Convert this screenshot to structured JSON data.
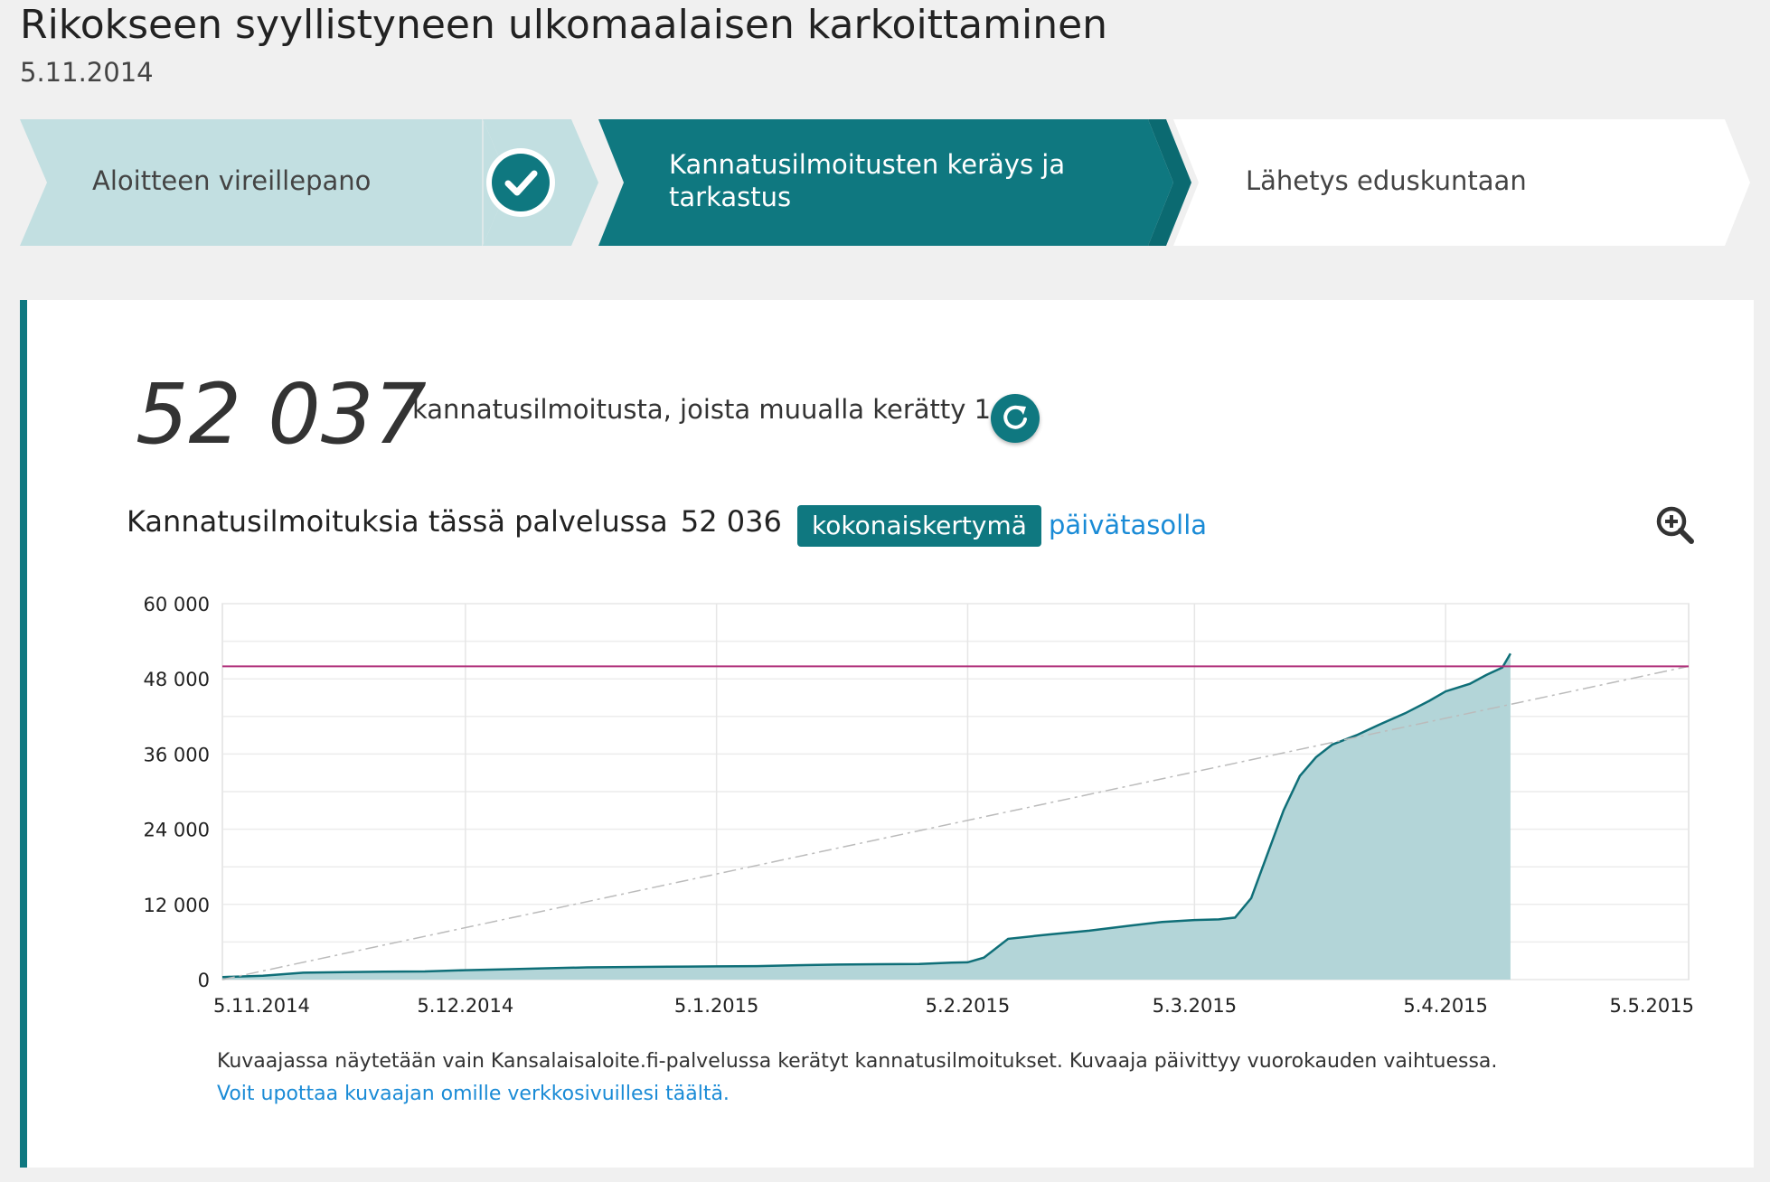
{
  "page": {
    "title": "Rikokseen syyllistyneen ulkomaalaisen karkoittaminen",
    "date": "5.11.2014"
  },
  "steps": [
    {
      "label": "Aloitteen vireillepano",
      "state": "done"
    },
    {
      "label_line1": "Kannatusilmoitusten keräys ja",
      "label_line2": "tarkastus",
      "state": "active"
    },
    {
      "label": "Lähetys eduskuntaan",
      "state": "upcoming"
    }
  ],
  "summary": {
    "count": "52 037",
    "description": "kannatusilmoitusta, joista muualla kerätty 1"
  },
  "chart_section": {
    "heading": "Kannatusilmoituksia tässä palvelussa",
    "service_count": "52 036",
    "tab_active": "kokonaiskertymä",
    "tab_other": "päivätasolla"
  },
  "note": {
    "text": "Kuvaajassa näytetään vain Kansalaisaloite.fi-palvelussa kerätyt kannatusilmoitukset. Kuvaaja päivittyy vuorokauden vaihtuessa.",
    "link": "Voit upottaa kuvaajan omille verkkosivuillesi täältä."
  },
  "colors": {
    "accent": "#0f7880",
    "done_step": "#c2dfe1",
    "area_fill": "#b3d5d8",
    "threshold_line": "#b0307a",
    "link": "#1a8bd6"
  },
  "chart_data": {
    "type": "area",
    "x_tick_labels": [
      "5.11.2014",
      "5.12.2014",
      "5.1.2015",
      "5.2.2015",
      "5.3.2015",
      "5.4.2015",
      "5.5.2015"
    ],
    "y_tick_labels": [
      "0",
      "12 000",
      "24 000",
      "36 000",
      "48 000",
      "60 000"
    ],
    "ylim": [
      0,
      60000
    ],
    "xlim": [
      "2014-11-05",
      "2015-05-05"
    ],
    "threshold": 50000,
    "target_line": {
      "from": [
        "2014-11-05",
        0
      ],
      "to": [
        "2015-05-05",
        50000
      ]
    },
    "series": [
      {
        "x": [
          "2014-11-05",
          "2014-11-10",
          "2014-11-15",
          "2014-11-20",
          "2014-11-25",
          "2014-11-30",
          "2014-12-05",
          "2014-12-10",
          "2014-12-15",
          "2014-12-20",
          "2014-12-25",
          "2014-12-30",
          "2015-01-05",
          "2015-01-10",
          "2015-01-15",
          "2015-01-20",
          "2015-01-25",
          "2015-01-30",
          "2015-02-01",
          "2015-02-03",
          "2015-02-05",
          "2015-02-07",
          "2015-02-10",
          "2015-02-15",
          "2015-02-20",
          "2015-02-25",
          "2015-03-01",
          "2015-03-05",
          "2015-03-08",
          "2015-03-10",
          "2015-03-12",
          "2015-03-14",
          "2015-03-16",
          "2015-03-18",
          "2015-03-20",
          "2015-03-22",
          "2015-03-25",
          "2015-03-28",
          "2015-03-31",
          "2015-04-03",
          "2015-04-05",
          "2015-04-08",
          "2015-04-10",
          "2015-04-12",
          "2015-04-13"
        ],
        "values": [
          400,
          600,
          1100,
          1200,
          1250,
          1300,
          1500,
          1650,
          1800,
          1950,
          2000,
          2050,
          2100,
          2150,
          2300,
          2400,
          2450,
          2500,
          2600,
          2700,
          2750,
          3500,
          6500,
          7200,
          7800,
          8600,
          9200,
          9500,
          9600,
          9900,
          13000,
          20000,
          27000,
          32500,
          35500,
          37500,
          39000,
          40800,
          42500,
          44500,
          46000,
          47200,
          48600,
          49800,
          52036
        ]
      }
    ]
  }
}
